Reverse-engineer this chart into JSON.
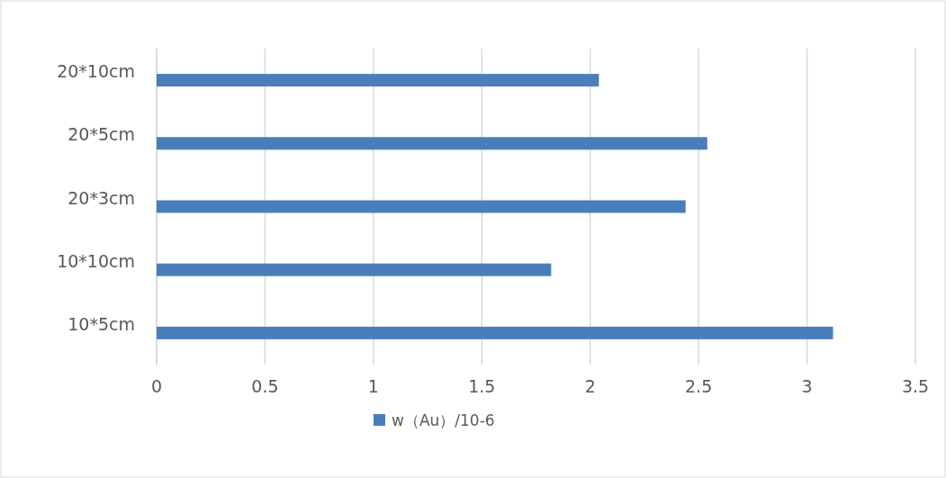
{
  "chart_data": {
    "type": "bar",
    "orientation": "horizontal",
    "categories": [
      "20*10cm",
      "20*5cm",
      "20*3cm",
      "10*10cm",
      "10*5cm"
    ],
    "series": [
      {
        "name": "w（Au）/10-6",
        "color": "#4a7ebb",
        "values": [
          2.04,
          2.54,
          2.44,
          1.82,
          3.12
        ]
      }
    ],
    "xlim": [
      0,
      3.5
    ],
    "xticks": [
      0,
      0.5,
      1,
      1.5,
      2,
      2.5,
      3,
      3.5
    ],
    "grid": "x",
    "legend": "bottom"
  }
}
